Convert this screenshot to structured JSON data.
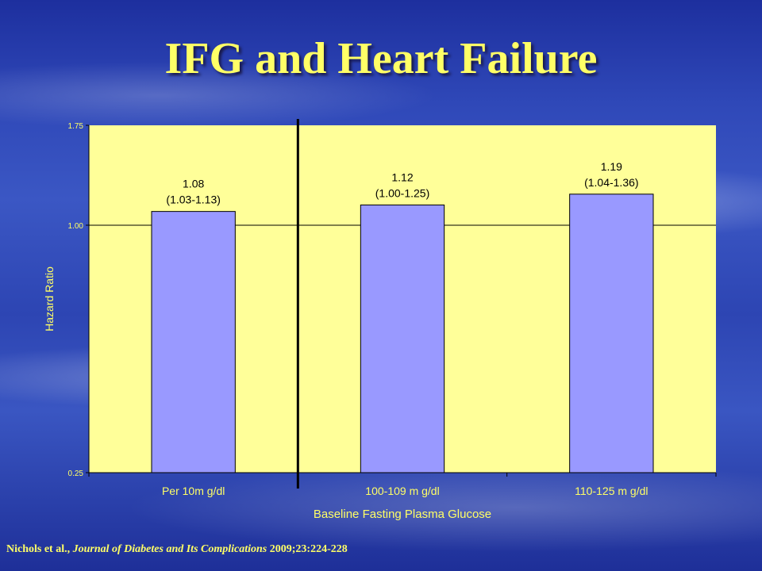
{
  "slide": {
    "title": "IFG and Heart Failure",
    "citation": {
      "authors": "Nichols et al.,",
      "journal": "Journal of Diabetes and Its Complications",
      "details": "2009;23:224-228"
    }
  },
  "chart_data": {
    "type": "bar",
    "title": "",
    "xlabel": "Baseline Fasting Plasma Glucose",
    "ylabel": "Hazard Ratio",
    "categories": [
      "Per 10m g/dl",
      "100-109 m g/dl",
      "110-125 m g/dl"
    ],
    "values": [
      1.08,
      1.12,
      1.19
    ],
    "value_labels": [
      "1.08",
      "1.12",
      "1.19"
    ],
    "ci_labels": [
      "(1.03-1.13)",
      "(1.00-1.25)",
      "(1.04-1.36)"
    ],
    "y_ticks": [
      0.25,
      1.0,
      1.75
    ],
    "y_tick_labels": [
      "0.25",
      "1.00",
      "1.75"
    ],
    "ylim": [
      0.25,
      1.75
    ],
    "y_scale": "log",
    "gridlines": [
      1.0
    ],
    "grid": false,
    "legend": "none",
    "separator_after_category": 0,
    "colors": {
      "plot_bg": "#ffff99",
      "bar_fill": "#9999ff",
      "bar_stroke": "#000000",
      "label_text": "#ffff66",
      "slide_accent": "#ffff66"
    }
  }
}
